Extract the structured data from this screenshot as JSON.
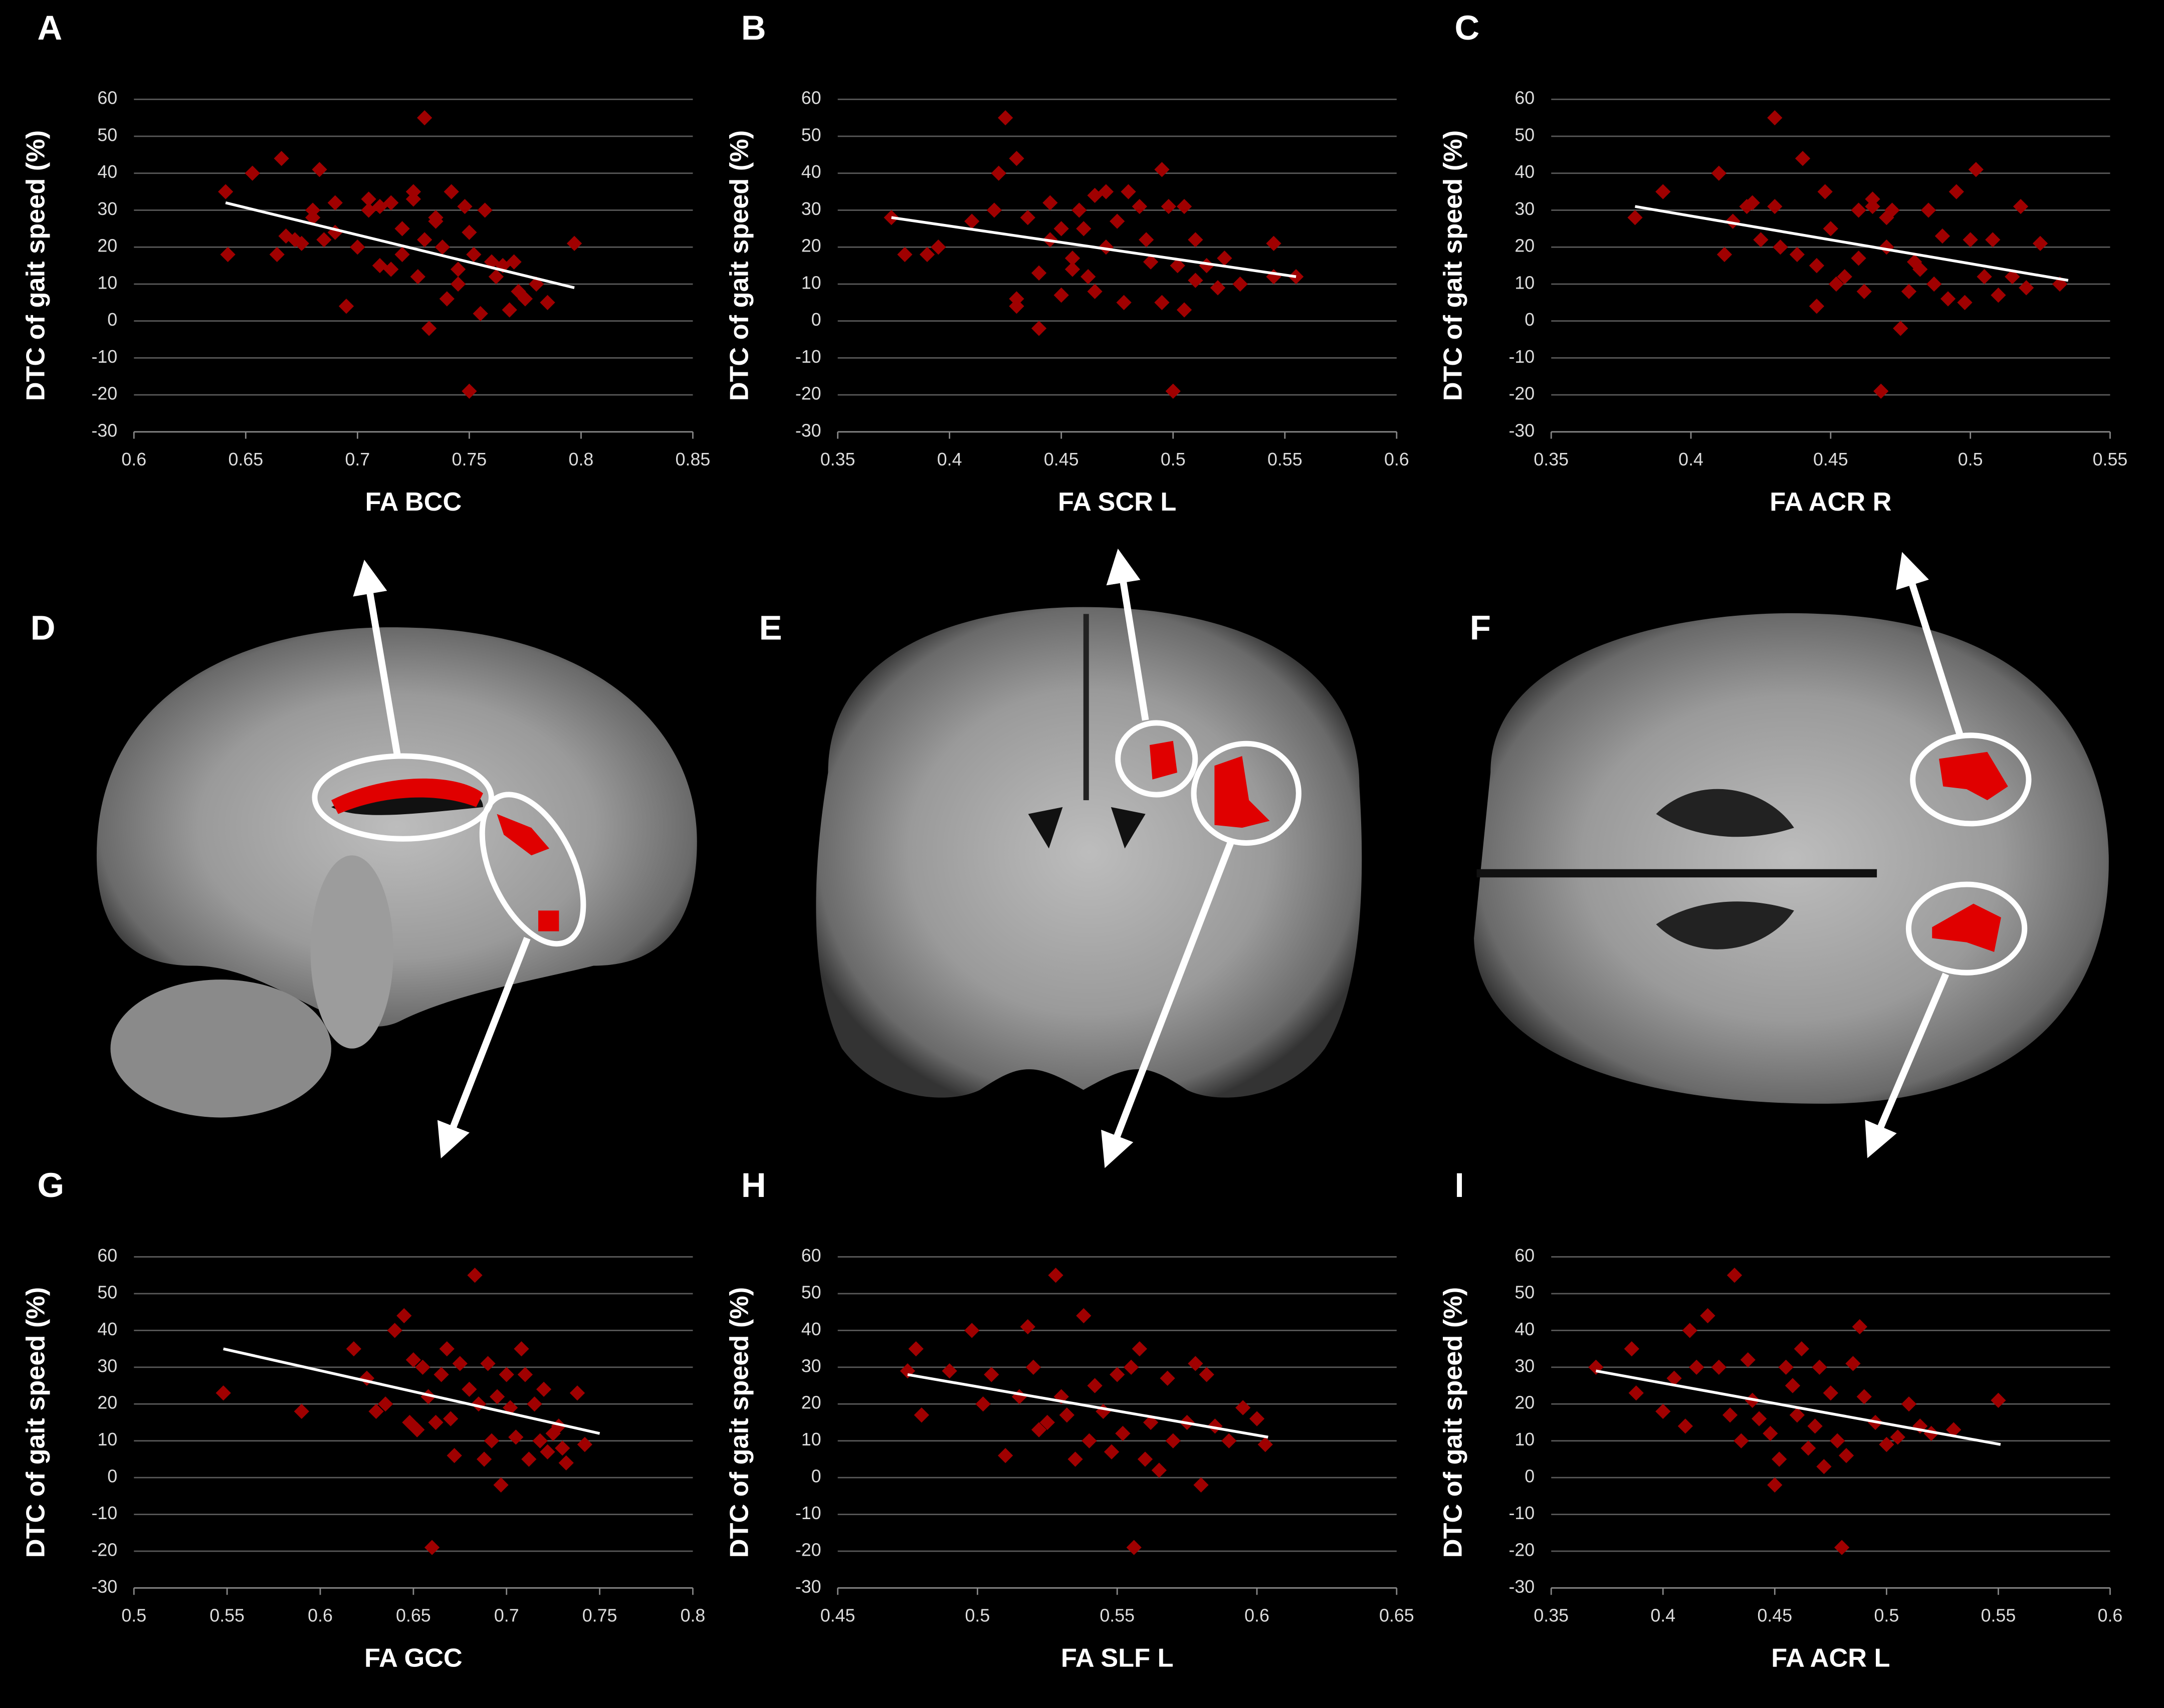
{
  "chart_data": [
    {
      "type": "scatter",
      "panel": "A",
      "xlabel": "FA BCC",
      "ylabel": "DTC of gait speed (%)",
      "color": "#a00000",
      "xlim": [
        0.6,
        0.85
      ],
      "ylim": [
        -30,
        60
      ],
      "xticks": [
        0.6,
        0.65,
        0.7,
        0.75,
        0.8,
        0.85
      ],
      "yticks": [
        60,
        50,
        40,
        30,
        20,
        10,
        0,
        -10,
        -20,
        -30
      ],
      "grid": true,
      "x": [
        0.641,
        0.642,
        0.653,
        0.664,
        0.666,
        0.668,
        0.672,
        0.675,
        0.683,
        0.68,
        0.685,
        0.69,
        0.69,
        0.68,
        0.695,
        0.7,
        0.705,
        0.705,
        0.71,
        0.71,
        0.715,
        0.715,
        0.72,
        0.72,
        0.725,
        0.725,
        0.727,
        0.73,
        0.73,
        0.732,
        0.735,
        0.735,
        0.738,
        0.74,
        0.742,
        0.745,
        0.745,
        0.748,
        0.75,
        0.75,
        0.752,
        0.755,
        0.757,
        0.76,
        0.762,
        0.765,
        0.768,
        0.77,
        0.772,
        0.775,
        0.78,
        0.785,
        0.797
      ],
      "values": [
        35,
        18,
        40,
        18,
        44,
        23,
        22,
        21,
        41,
        28,
        22,
        32,
        24,
        30,
        4,
        20,
        33,
        30,
        31,
        15,
        32,
        14,
        25,
        18,
        35,
        33,
        12,
        22,
        55,
        -2,
        28,
        27,
        20,
        6,
        35,
        10,
        14,
        31,
        -19,
        24,
        18,
        2,
        30,
        16,
        12,
        15,
        3,
        16,
        8,
        6,
        10,
        5,
        21
      ],
      "trendline": {
        "color": "#ffffff",
        "x": [
          0.641,
          0.797
        ],
        "values": [
          32,
          9
        ]
      }
    },
    {
      "type": "scatter",
      "panel": "B",
      "xlabel": "FA SCR L",
      "ylabel": "DTC of gait speed (%)",
      "color": "#a00000",
      "xlim": [
        0.35,
        0.6
      ],
      "ylim": [
        -30,
        60
      ],
      "xticks": [
        0.35,
        0.4,
        0.45,
        0.5,
        0.55,
        0.6
      ],
      "yticks": [
        60,
        50,
        40,
        30,
        20,
        10,
        0,
        -10,
        -20,
        -30
      ],
      "grid": true,
      "x": [
        0.374,
        0.38,
        0.39,
        0.395,
        0.41,
        0.42,
        0.422,
        0.425,
        0.43,
        0.43,
        0.43,
        0.435,
        0.44,
        0.44,
        0.445,
        0.445,
        0.45,
        0.45,
        0.455,
        0.455,
        0.458,
        0.46,
        0.462,
        0.465,
        0.465,
        0.47,
        0.47,
        0.475,
        0.478,
        0.48,
        0.485,
        0.488,
        0.49,
        0.495,
        0.495,
        0.498,
        0.5,
        0.502,
        0.505,
        0.505,
        0.51,
        0.51,
        0.515,
        0.52,
        0.523,
        0.53,
        0.545,
        0.545,
        0.555
      ],
      "values": [
        28,
        18,
        18,
        20,
        27,
        30,
        40,
        55,
        44,
        6,
        4,
        28,
        -2,
        13,
        32,
        22,
        25,
        7,
        17,
        14,
        30,
        25,
        12,
        34,
        8,
        35,
        20,
        27,
        5,
        35,
        31,
        22,
        16,
        41,
        5,
        31,
        -19,
        15,
        31,
        3,
        22,
        11,
        15,
        9,
        17,
        10,
        21,
        12,
        12
      ],
      "trendline": {
        "color": "#ffffff",
        "x": [
          0.374,
          0.555
        ],
        "values": [
          28,
          12
        ]
      }
    },
    {
      "type": "scatter",
      "panel": "C",
      "xlabel": "FA ACR R",
      "ylabel": "DTC of gait speed (%)",
      "color": "#a00000",
      "xlim": [
        0.35,
        0.55
      ],
      "ylim": [
        -30,
        60
      ],
      "xticks": [
        0.35,
        0.4,
        0.45,
        0.5,
        0.55
      ],
      "yticks": [
        60,
        50,
        40,
        30,
        20,
        10,
        0,
        -10,
        -20,
        -30
      ],
      "grid": true,
      "x": [
        0.38,
        0.39,
        0.41,
        0.412,
        0.415,
        0.42,
        0.422,
        0.425,
        0.43,
        0.43,
        0.432,
        0.438,
        0.44,
        0.445,
        0.445,
        0.448,
        0.45,
        0.452,
        0.455,
        0.46,
        0.46,
        0.462,
        0.465,
        0.465,
        0.468,
        0.47,
        0.47,
        0.472,
        0.475,
        0.478,
        0.48,
        0.482,
        0.485,
        0.487,
        0.49,
        0.492,
        0.495,
        0.498,
        0.5,
        0.502,
        0.505,
        0.508,
        0.51,
        0.515,
        0.518,
        0.52,
        0.525,
        0.532
      ],
      "values": [
        28,
        35,
        40,
        18,
        27,
        31,
        32,
        22,
        55,
        31,
        20,
        18,
        44,
        15,
        4,
        35,
        25,
        10,
        12,
        30,
        17,
        8,
        33,
        31,
        -19,
        28,
        20,
        30,
        -2,
        8,
        16,
        14,
        30,
        10,
        23,
        6,
        35,
        5,
        22,
        41,
        12,
        22,
        7,
        12,
        31,
        9,
        21,
        10
      ],
      "trendline": {
        "color": "#ffffff",
        "x": [
          0.38,
          0.535
        ],
        "values": [
          31,
          11
        ]
      }
    },
    {
      "type": "scatter",
      "panel": "G",
      "xlabel": "FA GCC",
      "ylabel": "DTC of gait speed (%)",
      "color": "#a00000",
      "xlim": [
        0.5,
        0.8
      ],
      "ylim": [
        -30,
        60
      ],
      "xticks": [
        0.5,
        0.55,
        0.6,
        0.65,
        0.7,
        0.75,
        0.8
      ],
      "yticks": [
        60,
        50,
        40,
        30,
        20,
        10,
        0,
        -10,
        -20,
        -30
      ],
      "grid": true,
      "x": [
        0.548,
        0.59,
        0.618,
        0.625,
        0.63,
        0.635,
        0.64,
        0.645,
        0.648,
        0.65,
        0.652,
        0.655,
        0.658,
        0.66,
        0.662,
        0.665,
        0.668,
        0.67,
        0.672,
        0.675,
        0.68,
        0.683,
        0.685,
        0.688,
        0.69,
        0.692,
        0.695,
        0.697,
        0.7,
        0.702,
        0.705,
        0.708,
        0.71,
        0.712,
        0.715,
        0.718,
        0.72,
        0.722,
        0.725,
        0.728,
        0.73,
        0.732,
        0.738,
        0.742
      ],
      "values": [
        23,
        18,
        35,
        27,
        18,
        20,
        40,
        44,
        15,
        32,
        13,
        30,
        22,
        -19,
        15,
        28,
        35,
        16,
        6,
        31,
        24,
        55,
        20,
        5,
        31,
        10,
        22,
        -2,
        28,
        19,
        11,
        35,
        28,
        5,
        20,
        10,
        24,
        7,
        12,
        14,
        8,
        4,
        23,
        9
      ],
      "trendline": {
        "color": "#ffffff",
        "x": [
          0.548,
          0.75
        ],
        "values": [
          35,
          12
        ]
      }
    },
    {
      "type": "scatter",
      "panel": "H",
      "xlabel": "FA SLF L",
      "ylabel": "DTC of gait speed (%)",
      "color": "#a00000",
      "xlim": [
        0.45,
        0.65
      ],
      "ylim": [
        -30,
        60
      ],
      "xticks": [
        0.45,
        0.5,
        0.55,
        0.6,
        0.65
      ],
      "yticks": [
        60,
        50,
        40,
        30,
        20,
        10,
        0,
        -10,
        -20,
        -30
      ],
      "grid": true,
      "x": [
        0.475,
        0.478,
        0.48,
        0.49,
        0.498,
        0.502,
        0.505,
        0.51,
        0.515,
        0.518,
        0.52,
        0.522,
        0.525,
        0.528,
        0.53,
        0.532,
        0.535,
        0.538,
        0.54,
        0.542,
        0.545,
        0.548,
        0.55,
        0.552,
        0.555,
        0.556,
        0.558,
        0.56,
        0.562,
        0.565,
        0.568,
        0.57,
        0.575,
        0.578,
        0.58,
        0.582,
        0.585,
        0.59,
        0.595,
        0.6,
        0.603
      ],
      "values": [
        29,
        35,
        17,
        29,
        40,
        20,
        28,
        6,
        22,
        41,
        30,
        13,
        15,
        55,
        22,
        17,
        5,
        44,
        10,
        25,
        18,
        7,
        28,
        12,
        30,
        -19,
        35,
        5,
        15,
        2,
        27,
        10,
        15,
        31,
        -2,
        28,
        14,
        10,
        19,
        16,
        9
      ],
      "trendline": {
        "color": "#ffffff",
        "x": [
          0.475,
          0.604
        ],
        "values": [
          28,
          11
        ]
      }
    },
    {
      "type": "scatter",
      "panel": "I",
      "xlabel": "FA ACR L",
      "ylabel": "DTC of gait speed (%)",
      "color": "#a00000",
      "xlim": [
        0.35,
        0.6
      ],
      "ylim": [
        -30,
        60
      ],
      "xticks": [
        0.35,
        0.4,
        0.45,
        0.5,
        0.55,
        0.6
      ],
      "yticks": [
        60,
        50,
        40,
        30,
        20,
        10,
        0,
        -10,
        -20,
        -30
      ],
      "grid": true,
      "x": [
        0.37,
        0.386,
        0.388,
        0.4,
        0.405,
        0.41,
        0.412,
        0.415,
        0.42,
        0.425,
        0.43,
        0.432,
        0.435,
        0.438,
        0.44,
        0.443,
        0.448,
        0.45,
        0.452,
        0.455,
        0.458,
        0.46,
        0.462,
        0.465,
        0.468,
        0.47,
        0.472,
        0.475,
        0.478,
        0.48,
        0.482,
        0.485,
        0.488,
        0.49,
        0.495,
        0.5,
        0.505,
        0.51,
        0.515,
        0.52,
        0.53,
        0.55
      ],
      "values": [
        30,
        35,
        23,
        18,
        27,
        14,
        40,
        30,
        44,
        30,
        17,
        55,
        10,
        32,
        21,
        16,
        12,
        -2,
        5,
        30,
        25,
        17,
        35,
        8,
        14,
        30,
        3,
        23,
        10,
        -19,
        6,
        31,
        41,
        22,
        15,
        9,
        11,
        20,
        14,
        12,
        13,
        21
      ],
      "trendline": {
        "color": "#ffffff",
        "x": [
          0.37,
          0.551
        ],
        "values": [
          29,
          9
        ]
      }
    }
  ],
  "image_panels": [
    {
      "label": "D"
    },
    {
      "label": "E"
    },
    {
      "label": "F"
    }
  ]
}
